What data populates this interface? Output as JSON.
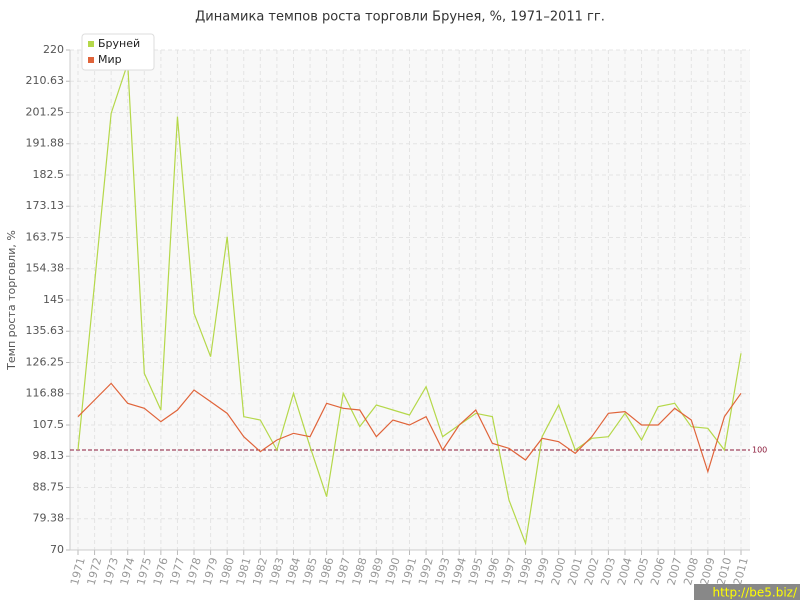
{
  "chart_data": {
    "type": "line",
    "title": "Динамика темпов роста торговли Брунея, %, 1971–2011 гг.",
    "y_label": "Темп роста торговли, %",
    "categories": [
      "1971",
      "1972",
      "1973",
      "1974",
      "1975",
      "1976",
      "1977",
      "1978",
      "1979",
      "1980",
      "1981",
      "1982",
      "1983",
      "1984",
      "1985",
      "1986",
      "1987",
      "1988",
      "1989",
      "1990",
      "1991",
      "1992",
      "1993",
      "1994",
      "1995",
      "1996",
      "1997",
      "1998",
      "1999",
      "2000",
      "2001",
      "2002",
      "2003",
      "2004",
      "2005",
      "2006",
      "2007",
      "2008",
      "2009",
      "2010",
      "2011"
    ],
    "series": [
      {
        "name": "Бруней",
        "color": "#b5d84a",
        "values": [
          100,
          150,
          201,
          216,
          123,
          112,
          200,
          141,
          128,
          164,
          110,
          109,
          100,
          117,
          101,
          86,
          117,
          107,
          113.5,
          112,
          110.5,
          119,
          104,
          107.5,
          111,
          110,
          85,
          72,
          104,
          113.5,
          100,
          103.5,
          104,
          111,
          103,
          113,
          114,
          107,
          106.5,
          100,
          129
        ]
      },
      {
        "name": "Мир",
        "color": "#e0643a",
        "values": [
          110,
          115,
          120,
          114,
          112.5,
          108.5,
          112,
          118,
          114.5,
          111,
          104,
          99.5,
          103,
          105,
          104,
          114,
          112.5,
          112,
          104,
          109,
          107.5,
          110,
          100,
          107.5,
          112,
          102,
          100.5,
          97,
          103.5,
          102.5,
          99,
          104,
          111,
          111.5,
          107.5,
          107.5,
          112.5,
          109,
          93.5,
          110,
          117
        ]
      }
    ],
    "ylim": [
      70,
      220
    ],
    "yticks": [
      70,
      79.38,
      88.75,
      98.13,
      107.5,
      116.88,
      126.25,
      135.63,
      145,
      154.38,
      163.75,
      173.13,
      182.5,
      191.88,
      201.25,
      210.63,
      220
    ],
    "grid": true,
    "reference_line": 100,
    "reference_color": "#8b1a3a",
    "legend": "top-left",
    "watermark": "http://be5.biz/"
  }
}
